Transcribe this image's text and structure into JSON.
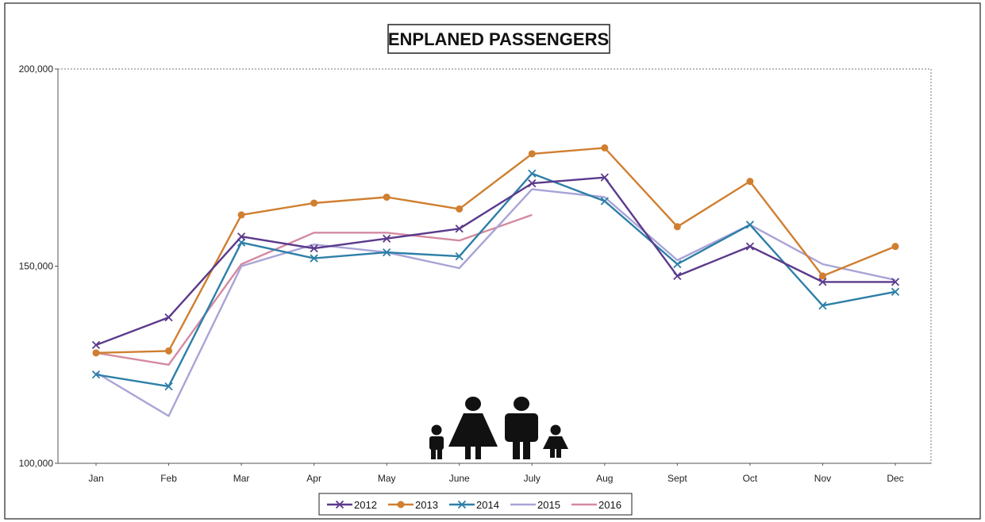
{
  "chart_data": {
    "type": "line",
    "title": "ENPLANED PASSENGERS",
    "categories": [
      "Jan",
      "Feb",
      "Mar",
      "Apr",
      "May",
      "June",
      "July",
      "Aug",
      "Sept",
      "Oct",
      "Nov",
      "Dec"
    ],
    "ylim": [
      100000,
      200000
    ],
    "yticks": [
      {
        "value": 100000,
        "label": "100,000"
      },
      {
        "value": 150000,
        "label": "150,000"
      },
      {
        "value": 200000,
        "label": "200,000"
      }
    ],
    "grid": false,
    "legend_position": "bottom",
    "series": [
      {
        "name": "2012",
        "color": "#5b3a8c",
        "marker": "x",
        "values": [
          130000,
          137000,
          157500,
          154500,
          157000,
          159500,
          171000,
          172500,
          147500,
          155000,
          146000,
          146000
        ]
      },
      {
        "name": "2013",
        "color": "#d07f30",
        "marker": "circle",
        "values": [
          128000,
          128500,
          163000,
          166000,
          167500,
          164500,
          178500,
          180000,
          160000,
          171500,
          147500,
          155000
        ]
      },
      {
        "name": "2014",
        "color": "#2e7fa8",
        "marker": "x",
        "values": [
          122500,
          119500,
          156000,
          152000,
          153500,
          152500,
          173500,
          166500,
          150500,
          160500,
          140000,
          143500
        ]
      },
      {
        "name": "2015",
        "color": "#a8a4d6",
        "marker": "none",
        "values": [
          123000,
          112000,
          150000,
          155500,
          153500,
          149500,
          169500,
          167500,
          151500,
          160500,
          150500,
          146500
        ]
      },
      {
        "name": "2016",
        "color": "#d48aa0",
        "marker": "none",
        "values": [
          128000,
          125000,
          150500,
          158500,
          158500,
          156500,
          163000,
          null,
          null,
          null,
          null,
          null
        ]
      }
    ]
  }
}
